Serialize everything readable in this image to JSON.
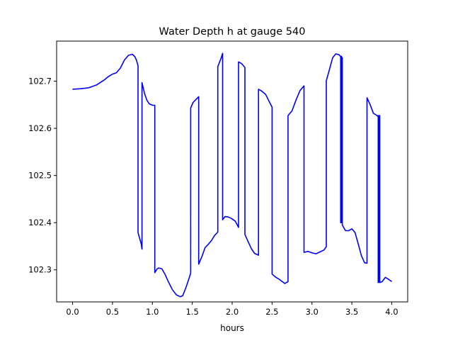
{
  "chart_data": {
    "type": "line",
    "title": "Water Depth h at gauge 540",
    "xlabel": "hours",
    "ylabel": "",
    "xlim": [
      -0.2,
      4.2
    ],
    "ylim": [
      102.232,
      102.785
    ],
    "x_ticks": [
      0.0,
      0.5,
      1.0,
      1.5,
      2.0,
      2.5,
      3.0,
      3.5,
      4.0
    ],
    "x_tick_labels": [
      "0.0",
      "0.5",
      "1.0",
      "1.5",
      "2.0",
      "2.5",
      "3.0",
      "3.5",
      "4.0"
    ],
    "y_ticks": [
      102.3,
      102.4,
      102.5,
      102.6,
      102.7
    ],
    "y_tick_labels": [
      "102.3",
      "102.4",
      "102.5",
      "102.6",
      "102.7"
    ],
    "grid": false,
    "legend": "none",
    "series": [
      {
        "color": "#0000ff",
        "x": [
          0.0,
          0.1,
          0.2,
          0.3,
          0.4,
          0.45,
          0.5,
          0.55,
          0.6,
          0.65,
          0.7,
          0.75,
          0.78,
          0.8,
          0.82,
          0.82,
          0.86,
          0.87,
          0.87,
          0.9,
          0.93,
          0.96,
          1.0,
          1.03,
          1.03,
          1.06,
          1.08,
          1.12,
          1.16,
          1.2,
          1.25,
          1.3,
          1.35,
          1.38,
          1.42,
          1.46,
          1.48,
          1.48,
          1.51,
          1.55,
          1.58,
          1.58,
          1.62,
          1.66,
          1.7,
          1.74,
          1.78,
          1.82,
          1.82,
          1.86,
          1.88,
          1.88,
          1.91,
          1.95,
          1.99,
          2.04,
          2.08,
          2.08,
          2.12,
          2.16,
          2.16,
          2.2,
          2.24,
          2.28,
          2.33,
          2.33,
          2.37,
          2.42,
          2.46,
          2.5,
          2.5,
          2.54,
          2.58,
          2.62,
          2.66,
          2.7,
          2.7,
          2.75,
          2.8,
          2.85,
          2.9,
          2.9,
          2.95,
          3.0,
          3.05,
          3.1,
          3.15,
          3.18,
          3.18,
          3.22,
          3.26,
          3.3,
          3.34,
          3.36,
          3.36,
          3.37,
          3.37,
          3.38,
          3.38,
          3.42,
          3.46,
          3.5,
          3.54,
          3.58,
          3.62,
          3.66,
          3.69,
          3.69,
          3.73,
          3.77,
          3.81,
          3.82,
          3.83,
          3.83,
          3.84,
          3.84,
          3.85,
          3.85,
          3.88,
          3.92,
          3.96,
          4.0
        ],
        "y": [
          102.683,
          102.684,
          102.686,
          102.692,
          102.703,
          102.71,
          102.715,
          102.718,
          102.728,
          102.745,
          102.755,
          102.757,
          102.752,
          102.745,
          102.733,
          102.379,
          102.355,
          102.344,
          102.697,
          102.675,
          102.66,
          102.652,
          102.649,
          102.649,
          102.294,
          102.302,
          102.304,
          102.302,
          102.29,
          102.275,
          102.258,
          102.247,
          102.243,
          102.245,
          102.262,
          102.282,
          102.293,
          102.643,
          102.655,
          102.662,
          102.667,
          102.312,
          102.328,
          102.347,
          102.354,
          102.362,
          102.373,
          102.38,
          102.731,
          102.748,
          102.759,
          102.406,
          102.413,
          102.412,
          102.409,
          102.403,
          102.39,
          102.741,
          102.737,
          102.729,
          102.375,
          102.36,
          102.345,
          102.335,
          102.331,
          102.683,
          102.679,
          102.672,
          102.658,
          102.645,
          102.291,
          102.285,
          102.281,
          102.276,
          102.271,
          102.275,
          102.627,
          102.637,
          102.66,
          102.68,
          102.69,
          102.337,
          102.339,
          102.336,
          102.334,
          102.338,
          102.342,
          102.349,
          102.701,
          102.725,
          102.75,
          102.758,
          102.756,
          102.752,
          102.4,
          102.753,
          102.4,
          102.75,
          102.395,
          102.383,
          102.383,
          102.387,
          102.379,
          102.355,
          102.33,
          102.315,
          102.314,
          102.665,
          102.65,
          102.632,
          102.628,
          102.626,
          102.627,
          102.273,
          102.627,
          102.274,
          102.627,
          102.273,
          102.275,
          102.284,
          102.28,
          102.275
        ]
      }
    ]
  }
}
